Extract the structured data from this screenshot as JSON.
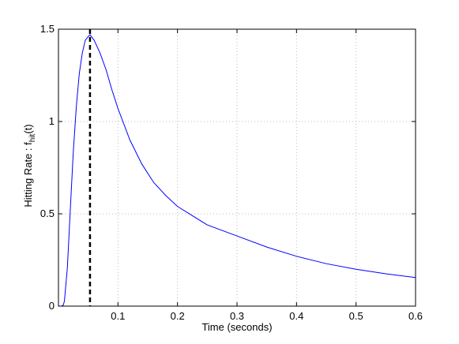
{
  "chart_data": {
    "type": "line",
    "xlabel": "Time (seconds)",
    "ylabel_parts": [
      "Hitting Rate : f",
      "hit",
      "(t)"
    ],
    "x": [
      0.005,
      0.008,
      0.01,
      0.015,
      0.02,
      0.025,
      0.03,
      0.035,
      0.04,
      0.045,
      0.05,
      0.053,
      0.06,
      0.07,
      0.08,
      0.09,
      0.1,
      0.12,
      0.14,
      0.16,
      0.18,
      0.2,
      0.25,
      0.3,
      0.35,
      0.4,
      0.45,
      0.5,
      0.55,
      0.6
    ],
    "series": [
      {
        "color": "#0000ff",
        "values": [
          0,
          0.005,
          0.027,
          0.21,
          0.53,
          0.84,
          1.08,
          1.26,
          1.37,
          1.44,
          1.46,
          1.47,
          1.44,
          1.37,
          1.28,
          1.17,
          1.07,
          0.9,
          0.77,
          0.67,
          0.6,
          0.54,
          0.44,
          0.38,
          0.32,
          0.27,
          0.23,
          0.2,
          0.175,
          0.155
        ]
      }
    ],
    "vline": 0.053,
    "xlim": [
      0,
      0.6
    ],
    "xticks": [
      0.1,
      0.2,
      0.3,
      0.4,
      0.5,
      0.6
    ],
    "ylim": [
      0,
      1.5
    ],
    "yticks": [
      0,
      0.5,
      1,
      1.5
    ],
    "grid": true
  }
}
